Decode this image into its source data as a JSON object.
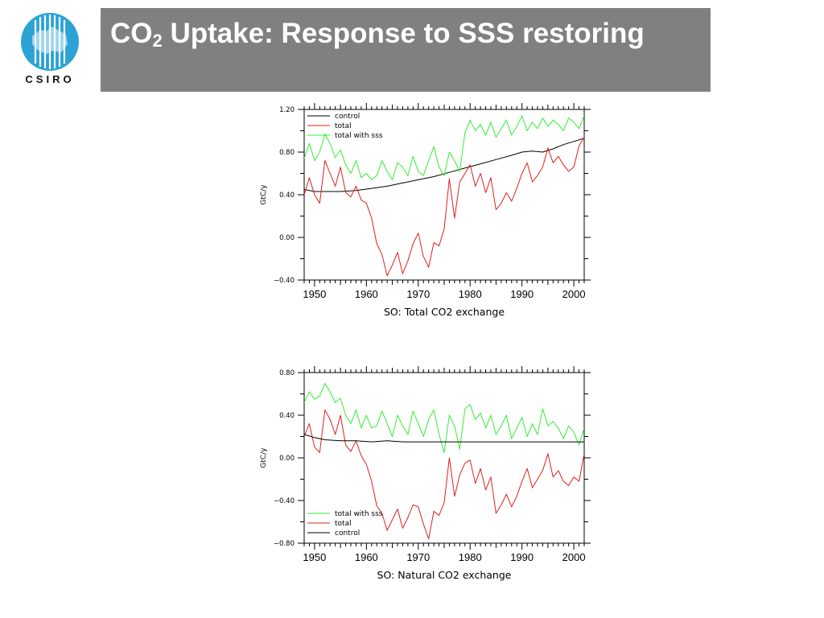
{
  "title": {
    "prefix": "CO",
    "subscript": "2",
    "rest": " Uptake: Response to SSS restoring"
  },
  "logo": {
    "text": "CSIRO",
    "color": "#2ba3d4"
  },
  "colors": {
    "control": "#000000",
    "total": "#e0201c",
    "total_sss": "#33ee33",
    "title_bar": "#808080"
  },
  "chart_data": [
    {
      "type": "line",
      "title": "",
      "xlabel": "SO: Total CO2 exchange",
      "ylabel": "GtC/y",
      "xlim": [
        1948,
        2002
      ],
      "ylim": [
        -0.4,
        1.2
      ],
      "xticks": [
        1950,
        1960,
        1970,
        1980,
        1990,
        2000
      ],
      "yticks": [
        -0.4,
        0.0,
        0.4,
        0.8,
        1.2
      ],
      "ytick_labels": [
        "−0.40",
        "0.00",
        "0.40",
        "0.80",
        "1.20"
      ],
      "legend_position": "top-left",
      "series": [
        {
          "name": "control",
          "color": "#000000",
          "x": [
            1948,
            1950,
            1952,
            1955,
            1958,
            1961,
            1964,
            1967,
            1970,
            1973,
            1976,
            1979,
            1982,
            1985,
            1988,
            1990,
            1992,
            1994,
            1996,
            1998,
            2000,
            2002
          ],
          "y": [
            0.45,
            0.43,
            0.43,
            0.43,
            0.44,
            0.46,
            0.48,
            0.51,
            0.54,
            0.57,
            0.61,
            0.65,
            0.69,
            0.73,
            0.77,
            0.8,
            0.81,
            0.8,
            0.83,
            0.87,
            0.9,
            0.93
          ]
        },
        {
          "name": "total",
          "color": "#e0201c",
          "x": [
            1948,
            1949,
            1950,
            1951,
            1952,
            1953,
            1954,
            1955,
            1956,
            1957,
            1958,
            1959,
            1960,
            1961,
            1962,
            1963,
            1964,
            1965,
            1966,
            1967,
            1968,
            1969,
            1970,
            1971,
            1972,
            1973,
            1974,
            1975,
            1976,
            1977,
            1978,
            1979,
            1980,
            1981,
            1982,
            1983,
            1984,
            1985,
            1986,
            1987,
            1988,
            1989,
            1990,
            1991,
            1992,
            1993,
            1994,
            1995,
            1996,
            1997,
            1998,
            1999,
            2000,
            2001,
            2002
          ],
          "y": [
            0.4,
            0.56,
            0.4,
            0.32,
            0.72,
            0.6,
            0.48,
            0.66,
            0.42,
            0.38,
            0.48,
            0.35,
            0.32,
            0.18,
            -0.06,
            -0.16,
            -0.36,
            -0.26,
            -0.14,
            -0.34,
            -0.22,
            -0.06,
            0.04,
            -0.18,
            -0.28,
            -0.05,
            -0.08,
            0.08,
            0.55,
            0.18,
            0.52,
            0.6,
            0.68,
            0.48,
            0.6,
            0.42,
            0.56,
            0.26,
            0.32,
            0.42,
            0.34,
            0.46,
            0.6,
            0.7,
            0.52,
            0.58,
            0.66,
            0.84,
            0.7,
            0.76,
            0.68,
            0.62,
            0.66,
            0.86,
            0.94
          ]
        },
        {
          "name": "total with sss",
          "color": "#33ee33",
          "x": [
            1948,
            1949,
            1950,
            1951,
            1952,
            1953,
            1954,
            1955,
            1956,
            1957,
            1958,
            1959,
            1960,
            1961,
            1962,
            1963,
            1964,
            1965,
            1966,
            1967,
            1968,
            1969,
            1970,
            1971,
            1972,
            1973,
            1974,
            1975,
            1976,
            1977,
            1978,
            1979,
            1980,
            1981,
            1982,
            1983,
            1984,
            1985,
            1986,
            1987,
            1988,
            1989,
            1990,
            1991,
            1992,
            1993,
            1994,
            1995,
            1996,
            1997,
            1998,
            1999,
            2000,
            2001,
            2002
          ],
          "y": [
            0.74,
            0.88,
            0.72,
            0.8,
            0.97,
            0.88,
            0.75,
            0.82,
            0.68,
            0.6,
            0.72,
            0.56,
            0.6,
            0.54,
            0.58,
            0.72,
            0.62,
            0.54,
            0.7,
            0.66,
            0.58,
            0.76,
            0.62,
            0.58,
            0.72,
            0.85,
            0.66,
            0.58,
            0.8,
            0.72,
            0.62,
            0.98,
            1.1,
            1.0,
            1.06,
            0.96,
            1.08,
            0.94,
            1.02,
            1.1,
            0.96,
            1.04,
            1.14,
            1.0,
            1.08,
            1.02,
            1.12,
            1.04,
            1.1,
            1.06,
            1.0,
            1.12,
            1.08,
            1.02,
            1.14
          ]
        }
      ]
    },
    {
      "type": "line",
      "title": "",
      "xlabel": "SO: Natural CO2 exchange",
      "ylabel": "GtC/y",
      "xlim": [
        1948,
        2002
      ],
      "ylim": [
        -0.8,
        0.8
      ],
      "xticks": [
        1950,
        1960,
        1970,
        1980,
        1990,
        2000
      ],
      "yticks": [
        -0.8,
        -0.4,
        0.0,
        0.4,
        0.8
      ],
      "ytick_labels": [
        "−0.80",
        "−0.40",
        "0.00",
        "0.40",
        "0.80"
      ],
      "legend_position": "bottom-left",
      "series": [
        {
          "name": "total with sss",
          "color": "#33ee33",
          "x": [
            1948,
            1949,
            1950,
            1951,
            1952,
            1953,
            1954,
            1955,
            1956,
            1957,
            1958,
            1959,
            1960,
            1961,
            1962,
            1963,
            1964,
            1965,
            1966,
            1967,
            1968,
            1969,
            1970,
            1971,
            1972,
            1973,
            1974,
            1975,
            1976,
            1977,
            1978,
            1979,
            1980,
            1981,
            1982,
            1983,
            1984,
            1985,
            1986,
            1987,
            1988,
            1989,
            1990,
            1991,
            1992,
            1993,
            1994,
            1995,
            1996,
            1997,
            1998,
            1999,
            2000,
            2001,
            2002
          ],
          "y": [
            0.52,
            0.62,
            0.55,
            0.58,
            0.7,
            0.62,
            0.52,
            0.56,
            0.4,
            0.32,
            0.45,
            0.28,
            0.4,
            0.28,
            0.3,
            0.44,
            0.32,
            0.2,
            0.4,
            0.3,
            0.22,
            0.44,
            0.32,
            0.2,
            0.36,
            0.45,
            0.22,
            0.05,
            0.4,
            0.3,
            0.08,
            0.46,
            0.5,
            0.36,
            0.42,
            0.28,
            0.4,
            0.22,
            0.3,
            0.4,
            0.18,
            0.28,
            0.38,
            0.2,
            0.32,
            0.22,
            0.46,
            0.3,
            0.34,
            0.28,
            0.18,
            0.3,
            0.24,
            0.12,
            0.28
          ]
        },
        {
          "name": "total",
          "color": "#e0201c",
          "x": [
            1948,
            1949,
            1950,
            1951,
            1952,
            1953,
            1954,
            1955,
            1956,
            1957,
            1958,
            1959,
            1960,
            1961,
            1962,
            1963,
            1964,
            1965,
            1966,
            1967,
            1968,
            1969,
            1970,
            1971,
            1972,
            1973,
            1974,
            1975,
            1976,
            1977,
            1978,
            1979,
            1980,
            1981,
            1982,
            1983,
            1984,
            1985,
            1986,
            1987,
            1988,
            1989,
            1990,
            1991,
            1992,
            1993,
            1994,
            1995,
            1996,
            1997,
            1998,
            1999,
            2000,
            2001,
            2002
          ],
          "y": [
            0.2,
            0.32,
            0.1,
            0.05,
            0.45,
            0.36,
            0.22,
            0.4,
            0.12,
            0.06,
            0.16,
            0.02,
            -0.06,
            -0.22,
            -0.45,
            -0.52,
            -0.68,
            -0.58,
            -0.48,
            -0.66,
            -0.56,
            -0.44,
            -0.46,
            -0.62,
            -0.76,
            -0.5,
            -0.54,
            -0.42,
            0.0,
            -0.36,
            -0.16,
            -0.05,
            -0.02,
            -0.24,
            -0.1,
            -0.3,
            -0.18,
            -0.52,
            -0.44,
            -0.34,
            -0.46,
            -0.36,
            -0.22,
            -0.1,
            -0.28,
            -0.2,
            -0.12,
            0.04,
            -0.18,
            -0.12,
            -0.22,
            -0.26,
            -0.18,
            -0.22,
            0.04
          ]
        },
        {
          "name": "control",
          "color": "#000000",
          "x": [
            1948,
            1950,
            1952,
            1955,
            1958,
            1961,
            1964,
            1967,
            1970,
            1973,
            1976,
            1979,
            1982,
            1985,
            1988,
            1991,
            1994,
            1997,
            2000,
            2002
          ],
          "y": [
            0.22,
            0.19,
            0.17,
            0.16,
            0.16,
            0.15,
            0.16,
            0.15,
            0.15,
            0.15,
            0.15,
            0.15,
            0.15,
            0.15,
            0.15,
            0.15,
            0.15,
            0.15,
            0.15,
            0.15
          ]
        }
      ]
    }
  ]
}
